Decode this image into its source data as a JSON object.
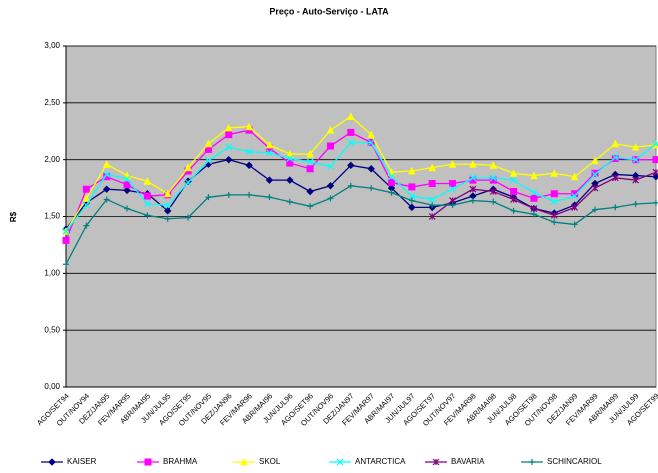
{
  "chart_data": {
    "type": "line",
    "title": "Preço - Auto-Serviço - LATA",
    "y_label": "R$",
    "categories": [
      "AGO/SET94",
      "OUT/NOV94",
      "DEZ/JAN95",
      "FEV/MAR95",
      "ABR/MAI95",
      "JUN/JUL95",
      "AGO/SET95",
      "OUT/NOV95",
      "DEZ/JAN96",
      "FEV/MAR96",
      "ABR/MAI96",
      "JUN/JUL96",
      "AGO/SET96",
      "OUT/NOV96",
      "DEZ/JAN97",
      "FEV/MAR97",
      "ABR/MAI97",
      "JUN/JUL97",
      "AGO/SET97",
      "OUT/NOV97",
      "FEV/MAR98",
      "ABR/MAI98",
      "JUN/JUL98",
      "AGO/SET98",
      "OUT/NOV98",
      "DEZ/JAN99",
      "FEV/MAR99",
      "ABR/MAI99",
      "JUN/JUL99",
      "AGO/SET99"
    ],
    "series": [
      {
        "name": "KAISER",
        "color": "#000080",
        "marker": "diamond",
        "values": [
          1.39,
          1.62,
          1.74,
          1.73,
          1.7,
          1.55,
          1.81,
          1.96,
          2.0,
          1.95,
          1.82,
          1.82,
          1.72,
          1.77,
          1.95,
          1.92,
          1.75,
          1.58,
          1.58,
          1.62,
          1.68,
          1.74,
          1.67,
          1.57,
          1.53,
          1.6,
          1.79,
          1.87,
          1.86,
          1.85
        ]
      },
      {
        "name": "BRAHMA",
        "color": "#ff00ff",
        "marker": "square",
        "values": [
          1.29,
          1.74,
          1.85,
          1.78,
          1.68,
          1.69,
          1.9,
          2.09,
          2.22,
          2.26,
          2.1,
          1.97,
          1.92,
          2.12,
          2.24,
          2.15,
          1.8,
          1.76,
          1.79,
          1.79,
          1.82,
          1.82,
          1.72,
          1.66,
          1.7,
          1.7,
          1.88,
          2.01,
          2.0,
          2.0
        ]
      },
      {
        "name": "SKOL",
        "color": "#ffff00",
        "marker": "triangle",
        "values": [
          1.37,
          1.66,
          1.96,
          1.86,
          1.81,
          1.7,
          1.93,
          2.14,
          2.28,
          2.29,
          2.13,
          2.05,
          2.05,
          2.26,
          2.38,
          2.22,
          1.89,
          1.9,
          1.93,
          1.96,
          1.96,
          1.95,
          1.88,
          1.86,
          1.88,
          1.85,
          1.99,
          2.14,
          2.11,
          2.13
        ]
      },
      {
        "name": "ANTARCTICA",
        "color": "#00ffff",
        "marker": "x",
        "values": [
          1.37,
          1.6,
          1.87,
          1.83,
          1.61,
          1.6,
          1.8,
          1.99,
          2.11,
          2.07,
          2.06,
          2.01,
          1.98,
          1.94,
          2.15,
          2.15,
          1.85,
          1.68,
          1.65,
          1.74,
          1.84,
          1.84,
          1.82,
          1.71,
          1.63,
          1.68,
          1.87,
          2.02,
          2.0,
          2.14
        ]
      },
      {
        "name": "BAVARIA",
        "color": "#800080",
        "marker": "star",
        "values": [
          null,
          null,
          null,
          null,
          null,
          null,
          null,
          null,
          null,
          null,
          null,
          null,
          null,
          null,
          null,
          null,
          null,
          null,
          1.5,
          1.64,
          1.74,
          1.72,
          1.65,
          1.57,
          1.51,
          1.58,
          1.75,
          1.84,
          1.82,
          1.89
        ]
      },
      {
        "name": "SCHINCARIOL",
        "color": "#008080",
        "marker": "plus",
        "values": [
          1.08,
          1.42,
          1.65,
          1.57,
          1.51,
          1.48,
          1.49,
          1.67,
          1.69,
          1.69,
          1.67,
          1.63,
          1.59,
          1.66,
          1.77,
          1.75,
          1.71,
          1.64,
          1.6,
          1.6,
          1.64,
          1.63,
          1.55,
          1.52,
          1.45,
          1.43,
          1.56,
          1.58,
          1.61,
          1.62
        ]
      }
    ],
    "ylim": [
      0,
      3
    ],
    "yticks": [
      {
        "value": 0,
        "label": "0,00"
      },
      {
        "value": 0.5,
        "label": "0,50"
      },
      {
        "value": 1,
        "label": "1,00"
      },
      {
        "value": 1.5,
        "label": "1,50"
      },
      {
        "value": 2,
        "label": "2,00"
      },
      {
        "value": 2.5,
        "label": "2,50"
      },
      {
        "value": 3,
        "label": "3,00"
      }
    ],
    "grid": true,
    "legend": "bottom",
    "plot_background": "#c0c0c0"
  }
}
